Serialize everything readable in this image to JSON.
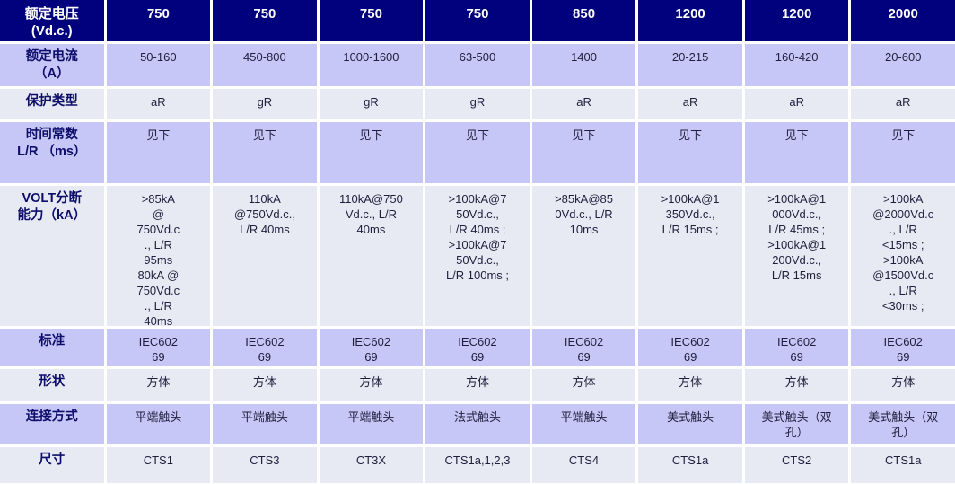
{
  "colors": {
    "header_background": "#01017e",
    "purple_row_background": "#c7c7f7",
    "light_row_background": "#e8eaf3",
    "grid_line": "#ffffff",
    "header_text": "#ffffff",
    "label_text": "#0d0d6b",
    "data_text": "#1f1f3d"
  },
  "table": {
    "rows": [
      {
        "label": "额定电压\n(Vd.c.)",
        "cells": [
          "750",
          "750",
          "750",
          "750",
          "850",
          "1200",
          "1200",
          "2000"
        ]
      },
      {
        "label": "额定电流\n（A）",
        "cells": [
          "50-160",
          "450-800",
          "1000-1600",
          "63-500",
          "1400",
          "20-215",
          "160-420",
          "20-600"
        ]
      },
      {
        "label": "保护类型",
        "cells": [
          "aR",
          "gR",
          "gR",
          "gR",
          "aR",
          "aR",
          "aR",
          "aR"
        ]
      },
      {
        "label": "时间常数\nL/R （ms）",
        "cells": [
          "见下",
          "见下",
          "见下",
          "见下",
          "见下",
          "见下",
          "见下",
          "见下"
        ]
      },
      {
        "label": "VOLT分断\n能力（kA）",
        "cells": [
          ">85kA\n@\n750Vd.c\n., L/R\n95ms\n80kA @\n750Vd.c\n., L/R\n40ms",
          "110kA\n@750Vd.c.,\nL/R 40ms",
          "110kA@750\nVd.c., L/R\n40ms",
          ">100kA@7\n50Vd.c.,\nL/R 40ms ;\n>100kA@7\n50Vd.c.,\nL/R 100ms ;",
          ">85kA@85\n0Vd.c., L/R\n10ms",
          ">100kA@1\n350Vd.c.,\nL/R 15ms ;",
          ">100kA@1\n000Vd.c.,\nL/R 45ms ;\n>100kA@1\n200Vd.c.,\nL/R 15ms",
          ">100kA\n@2000Vd.c\n., L/R\n<15ms ;\n>100kA\n@1500Vd.c\n., L/R\n<30ms ;"
        ]
      },
      {
        "label": "标准",
        "cells": [
          "IEC602\n69",
          "IEC602\n69",
          "IEC602\n69",
          "IEC602\n69",
          "IEC602\n69",
          "IEC602\n69",
          "IEC602\n69",
          "IEC602\n69"
        ]
      },
      {
        "label": "形状",
        "cells": [
          "方体",
          "方体",
          "方体",
          "方体",
          "方体",
          "方体",
          "方体",
          "方体"
        ]
      },
      {
        "label": "连接方式",
        "cells": [
          "平端触头",
          "平端触头",
          "平端触头",
          "法式触头",
          "平端触头",
          "美式触头",
          "美式触头（双\n孔）",
          "美式触头（双\n孔）"
        ]
      },
      {
        "label": "尺寸",
        "cells": [
          "CTS1",
          "CTS3",
          "CT3X",
          "CTS1a,1,2,3",
          "CTS4",
          "CTS1a",
          "CTS2",
          "CTS1a"
        ]
      }
    ]
  }
}
